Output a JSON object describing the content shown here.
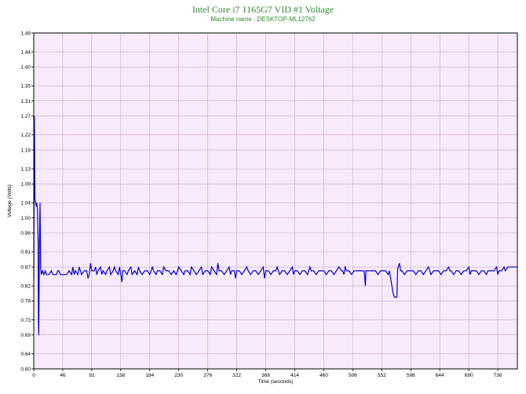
{
  "chart_data": {
    "type": "line",
    "title": "Intel Core i7 1165G7 VID #1 Voltage",
    "subtitle": "Machine name : DESKTOP-ML12762",
    "xlabel": "Time (seconds)",
    "ylabel": "Voltage (Volts)",
    "xlim": [
      0,
      767
    ],
    "ylim": [
      0.6,
      1.49
    ],
    "x_ticks": [
      0,
      46,
      92,
      138,
      184,
      230,
      276,
      322,
      368,
      414,
      460,
      506,
      552,
      598,
      644,
      690,
      736
    ],
    "y_ticks": [
      0.6,
      0.64,
      0.69,
      0.73,
      0.78,
      0.82,
      0.87,
      0.91,
      0.96,
      1.0,
      1.04,
      1.09,
      1.13,
      1.18,
      1.22,
      1.27,
      1.31,
      1.35,
      1.4,
      1.44,
      1.49
    ],
    "grid": true,
    "colors": {
      "line": "#0000cc",
      "plot_bg": "#f7ebfb",
      "grid": "#c8a8c8",
      "title": "#2e8b2e"
    },
    "series": [
      {
        "values": [
          [
            0,
            0.84
          ],
          [
            1,
            1.27
          ],
          [
            2,
            1.05
          ],
          [
            3,
            1.04
          ],
          [
            4,
            1.03
          ],
          [
            5,
            1.04
          ],
          [
            6,
            1.02
          ],
          [
            7,
            0.93
          ],
          [
            7.5,
            0.73
          ],
          [
            8,
            0.69
          ],
          [
            9,
            0.93
          ],
          [
            10,
            1.04
          ],
          [
            11,
            0.87
          ],
          [
            12,
            0.85
          ],
          [
            14,
            0.86
          ],
          [
            16,
            0.85
          ],
          [
            18,
            0.86
          ],
          [
            20,
            0.85
          ],
          [
            24,
            0.85
          ],
          [
            28,
            0.86
          ],
          [
            30,
            0.85
          ],
          [
            36,
            0.85
          ],
          [
            38,
            0.86
          ],
          [
            40,
            0.86
          ],
          [
            42,
            0.85
          ],
          [
            46,
            0.85
          ],
          [
            50,
            0.85
          ],
          [
            52,
            0.85
          ],
          [
            56,
            0.86
          ],
          [
            60,
            0.85
          ],
          [
            62,
            0.87
          ],
          [
            64,
            0.85
          ],
          [
            66,
            0.86
          ],
          [
            70,
            0.85
          ],
          [
            72,
            0.87
          ],
          [
            74,
            0.86
          ],
          [
            76,
            0.85
          ],
          [
            80,
            0.86
          ],
          [
            84,
            0.86
          ],
          [
            86,
            0.84
          ],
          [
            88,
            0.85
          ],
          [
            90,
            0.88
          ],
          [
            92,
            0.86
          ],
          [
            96,
            0.86
          ],
          [
            98,
            0.87
          ],
          [
            100,
            0.85
          ],
          [
            102,
            0.86
          ],
          [
            106,
            0.87
          ],
          [
            108,
            0.85
          ],
          [
            110,
            0.86
          ],
          [
            114,
            0.85
          ],
          [
            116,
            0.86
          ],
          [
            120,
            0.87
          ],
          [
            122,
            0.85
          ],
          [
            126,
            0.86
          ],
          [
            128,
            0.87
          ],
          [
            130,
            0.86
          ],
          [
            134,
            0.85
          ],
          [
            136,
            0.87
          ],
          [
            138,
            0.85
          ],
          [
            140,
            0.83
          ],
          [
            141,
            0.86
          ],
          [
            144,
            0.86
          ],
          [
            148,
            0.85
          ],
          [
            150,
            0.86
          ],
          [
            154,
            0.87
          ],
          [
            156,
            0.85
          ],
          [
            160,
            0.86
          ],
          [
            164,
            0.85
          ],
          [
            166,
            0.87
          ],
          [
            168,
            0.86
          ],
          [
            172,
            0.85
          ],
          [
            176,
            0.86
          ],
          [
            180,
            0.86
          ],
          [
            184,
            0.85
          ],
          [
            188,
            0.87
          ],
          [
            190,
            0.86
          ],
          [
            194,
            0.85
          ],
          [
            196,
            0.86
          ],
          [
            200,
            0.86
          ],
          [
            204,
            0.85
          ],
          [
            206,
            0.87
          ],
          [
            210,
            0.86
          ],
          [
            214,
            0.86
          ],
          [
            218,
            0.85
          ],
          [
            222,
            0.86
          ],
          [
            226,
            0.85
          ],
          [
            228,
            0.86
          ],
          [
            230,
            0.87
          ],
          [
            234,
            0.86
          ],
          [
            238,
            0.85
          ],
          [
            240,
            0.86
          ],
          [
            244,
            0.86
          ],
          [
            248,
            0.85
          ],
          [
            250,
            0.87
          ],
          [
            254,
            0.86
          ],
          [
            258,
            0.85
          ],
          [
            262,
            0.86
          ],
          [
            266,
            0.87
          ],
          [
            268,
            0.85
          ],
          [
            272,
            0.86
          ],
          [
            276,
            0.86
          ],
          [
            280,
            0.85
          ],
          [
            282,
            0.87
          ],
          [
            286,
            0.86
          ],
          [
            290,
            0.85
          ],
          [
            292,
            0.88
          ],
          [
            294,
            0.86
          ],
          [
            298,
            0.86
          ],
          [
            302,
            0.85
          ],
          [
            306,
            0.86
          ],
          [
            310,
            0.87
          ],
          [
            312,
            0.85
          ],
          [
            314,
            0.86
          ],
          [
            318,
            0.86
          ],
          [
            320,
            0.84
          ],
          [
            322,
            0.86
          ],
          [
            326,
            0.86
          ],
          [
            330,
            0.85
          ],
          [
            334,
            0.86
          ],
          [
            338,
            0.87
          ],
          [
            340,
            0.86
          ],
          [
            344,
            0.85
          ],
          [
            348,
            0.86
          ],
          [
            352,
            0.86
          ],
          [
            356,
            0.85
          ],
          [
            360,
            0.86
          ],
          [
            364,
            0.87
          ],
          [
            366,
            0.84
          ],
          [
            368,
            0.86
          ],
          [
            372,
            0.86
          ],
          [
            376,
            0.85
          ],
          [
            380,
            0.86
          ],
          [
            384,
            0.86
          ],
          [
            386,
            0.87
          ],
          [
            390,
            0.85
          ],
          [
            394,
            0.86
          ],
          [
            398,
            0.86
          ],
          [
            402,
            0.85
          ],
          [
            406,
            0.86
          ],
          [
            410,
            0.87
          ],
          [
            412,
            0.85
          ],
          [
            414,
            0.86
          ],
          [
            418,
            0.86
          ],
          [
            422,
            0.85
          ],
          [
            426,
            0.86
          ],
          [
            430,
            0.86
          ],
          [
            434,
            0.85
          ],
          [
            438,
            0.87
          ],
          [
            440,
            0.86
          ],
          [
            444,
            0.86
          ],
          [
            448,
            0.85
          ],
          [
            452,
            0.86
          ],
          [
            456,
            0.86
          ],
          [
            460,
            0.86
          ],
          [
            464,
            0.85
          ],
          [
            468,
            0.86
          ],
          [
            472,
            0.86
          ],
          [
            476,
            0.85
          ],
          [
            480,
            0.86
          ],
          [
            484,
            0.87
          ],
          [
            488,
            0.86
          ],
          [
            490,
            0.86
          ],
          [
            492,
            0.85
          ],
          [
            494,
            0.87
          ],
          [
            496,
            0.86
          ],
          [
            500,
            0.86
          ],
          [
            504,
            0.85
          ],
          [
            508,
            0.86
          ],
          [
            512,
            0.86
          ],
          [
            516,
            0.86
          ],
          [
            520,
            0.86
          ],
          [
            524,
            0.86
          ],
          [
            526,
            0.82
          ],
          [
            527,
            0.86
          ],
          [
            530,
            0.86
          ],
          [
            534,
            0.86
          ],
          [
            538,
            0.86
          ],
          [
            542,
            0.86
          ],
          [
            546,
            0.85
          ],
          [
            550,
            0.86
          ],
          [
            554,
            0.86
          ],
          [
            558,
            0.86
          ],
          [
            562,
            0.85
          ],
          [
            564,
            0.86
          ],
          [
            566,
            0.84
          ],
          [
            568,
            0.82
          ],
          [
            570,
            0.8
          ],
          [
            572,
            0.79
          ],
          [
            574,
            0.79
          ],
          [
            576,
            0.79
          ],
          [
            577,
            0.86
          ],
          [
            578,
            0.87
          ],
          [
            580,
            0.88
          ],
          [
            582,
            0.86
          ],
          [
            584,
            0.86
          ],
          [
            588,
            0.85
          ],
          [
            592,
            0.86
          ],
          [
            596,
            0.86
          ],
          [
            598,
            0.86
          ],
          [
            602,
            0.86
          ],
          [
            606,
            0.85
          ],
          [
            610,
            0.86
          ],
          [
            614,
            0.86
          ],
          [
            618,
            0.85
          ],
          [
            622,
            0.86
          ],
          [
            626,
            0.87
          ],
          [
            630,
            0.85
          ],
          [
            634,
            0.86
          ],
          [
            638,
            0.86
          ],
          [
            642,
            0.86
          ],
          [
            646,
            0.85
          ],
          [
            650,
            0.86
          ],
          [
            654,
            0.86
          ],
          [
            658,
            0.87
          ],
          [
            660,
            0.86
          ],
          [
            662,
            0.86
          ],
          [
            666,
            0.85
          ],
          [
            670,
            0.86
          ],
          [
            674,
            0.86
          ],
          [
            678,
            0.85
          ],
          [
            682,
            0.86
          ],
          [
            686,
            0.86
          ],
          [
            690,
            0.87
          ],
          [
            692,
            0.85
          ],
          [
            694,
            0.86
          ],
          [
            698,
            0.86
          ],
          [
            702,
            0.86
          ],
          [
            706,
            0.85
          ],
          [
            710,
            0.86
          ],
          [
            714,
            0.86
          ],
          [
            718,
            0.85
          ],
          [
            720,
            0.86
          ],
          [
            722,
            0.86
          ],
          [
            726,
            0.86
          ],
          [
            730,
            0.86
          ],
          [
            734,
            0.87
          ],
          [
            736,
            0.85
          ],
          [
            738,
            0.86
          ],
          [
            742,
            0.86
          ],
          [
            746,
            0.87
          ],
          [
            748,
            0.86
          ],
          [
            752,
            0.87
          ],
          [
            756,
            0.87
          ],
          [
            760,
            0.87
          ],
          [
            764,
            0.87
          ],
          [
            767,
            0.87
          ]
        ]
      }
    ]
  }
}
